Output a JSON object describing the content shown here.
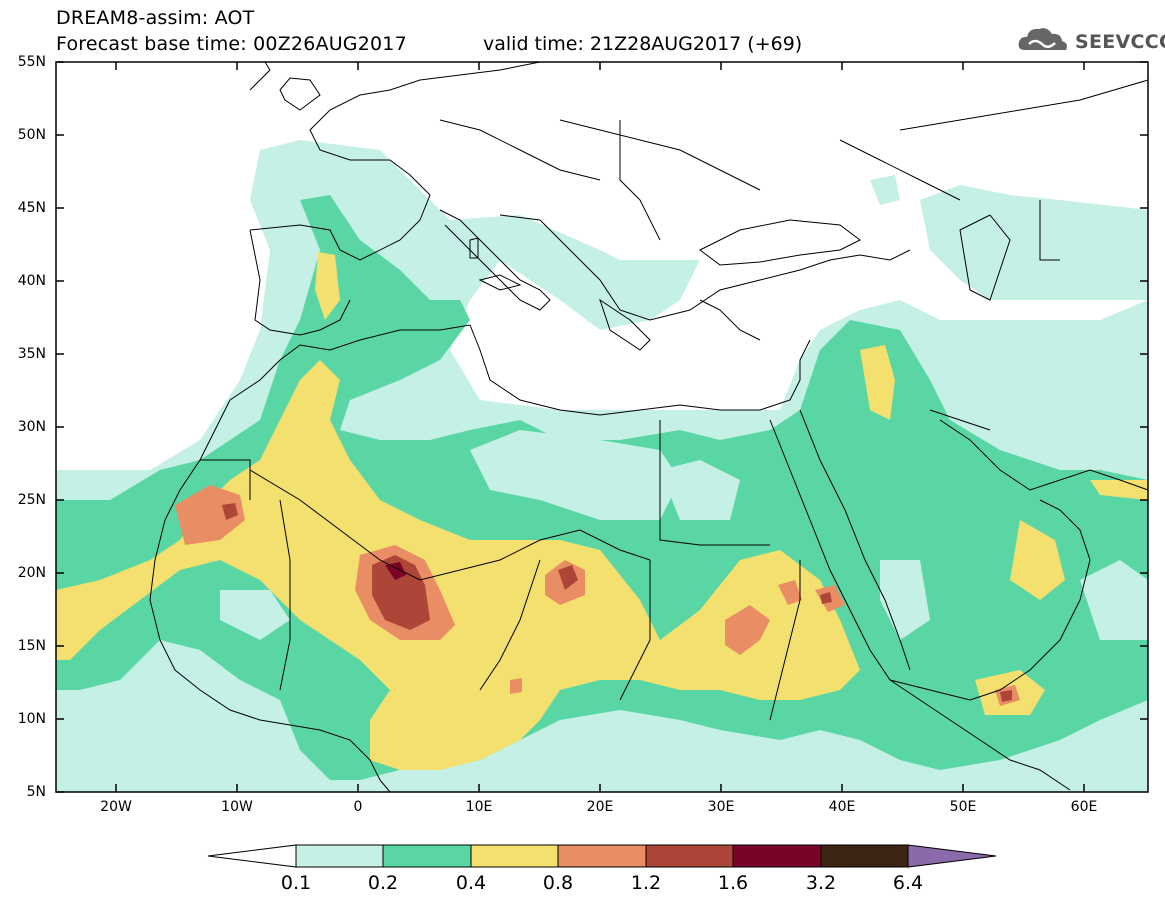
{
  "header": {
    "title_line1": "DREAM8-assim: AOT",
    "base_time": "Forecast base time: 00Z26AUG2017",
    "valid_time": "valid time: 21Z28AUG2017 (+69)",
    "logo_text": "SEEVCCC"
  },
  "map": {
    "lat_labels": [
      "55N",
      "50N",
      "45N",
      "40N",
      "35N",
      "30N",
      "25N",
      "20N",
      "15N",
      "10N",
      "5N"
    ],
    "lon_labels": [
      "20W",
      "10W",
      "0",
      "10E",
      "20E",
      "30E",
      "40E",
      "50E",
      "60E"
    ]
  },
  "colorbar": {
    "labels": [
      "0.1",
      "0.2",
      "0.4",
      "0.8",
      "1.2",
      "1.6",
      "3.2",
      "6.4"
    ],
    "colors": [
      "#ffffff",
      "#c4f0e6",
      "#5ad6a4",
      "#f3e06e",
      "#e88d64",
      "#ad4639",
      "#7a0328",
      "#3c2514",
      "#8a6aa8"
    ]
  }
}
